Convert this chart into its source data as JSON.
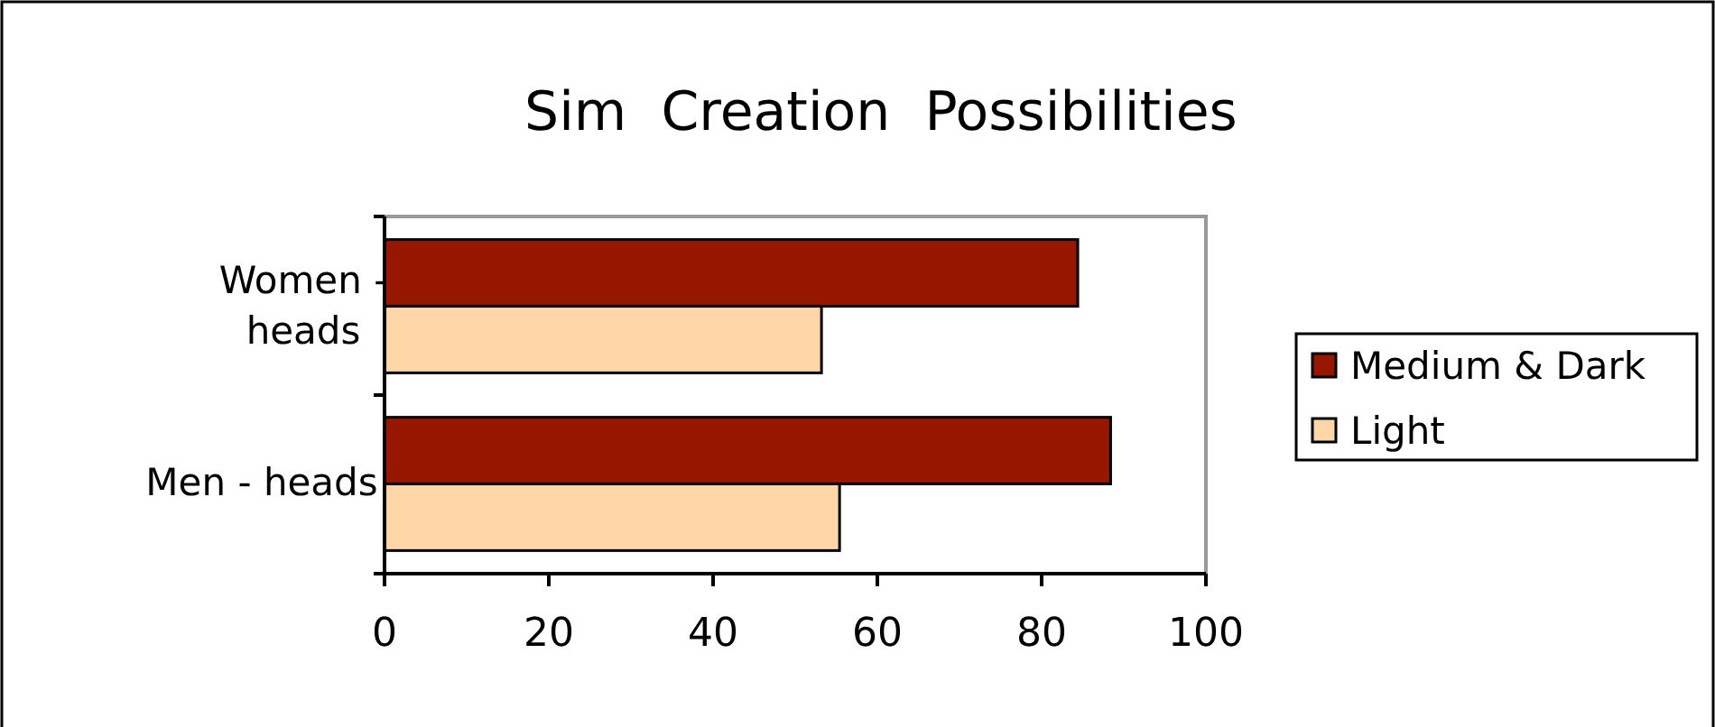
{
  "chart_data": {
    "type": "bar",
    "orientation": "horizontal",
    "title": "Sim  Creation  Possibilities",
    "categories": [
      "Women - heads",
      "Men - heads"
    ],
    "series": [
      {
        "name": "Medium & Dark",
        "color": "#961600",
        "values": [
          84.4,
          88.4
        ]
      },
      {
        "name": "Light",
        "color": "#ffd6a8",
        "values": [
          53.2,
          55.4
        ]
      }
    ],
    "xlim": [
      0,
      100
    ],
    "xticks": [
      0,
      20,
      40,
      60,
      80,
      100
    ],
    "grid": false,
    "legend": "right"
  }
}
